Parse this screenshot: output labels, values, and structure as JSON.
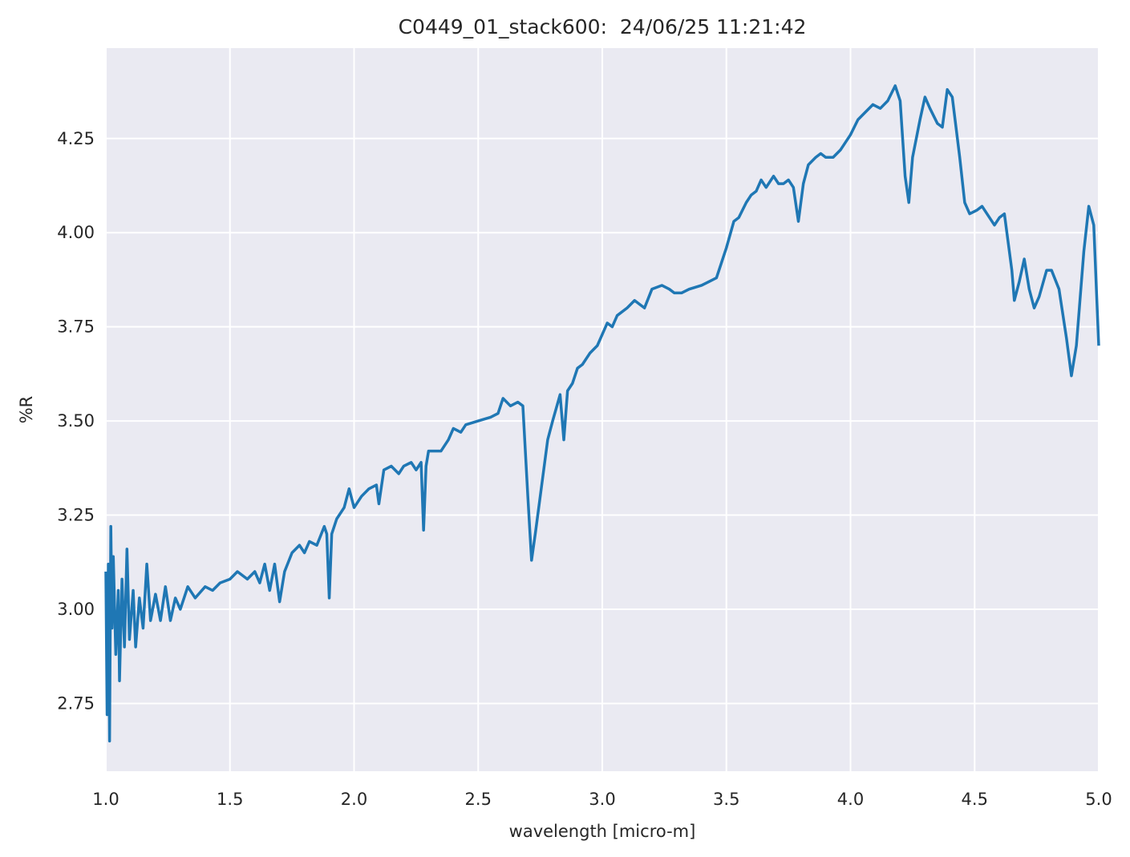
{
  "chart_data": {
    "type": "line",
    "title": "C0449_01_stack600:  24/06/25 11:21:42",
    "xlabel": "wavelength [micro-m]",
    "ylabel": "%R",
    "color": "#1f77b4",
    "grid": true,
    "xlim": [
      1.0,
      5.0
    ],
    "ylim": [
      2.57,
      4.49
    ],
    "xticks": [
      {
        "value": 1.0,
        "label": "1.0"
      },
      1.5,
      {
        "value": 2.0,
        "label": "2.0"
      },
      2.5,
      {
        "value": 3.0,
        "label": "3.0"
      },
      3.5,
      {
        "value": 4.0,
        "label": "4.0"
      },
      4.5,
      {
        "value": 5.0,
        "label": "5.0"
      }
    ],
    "yticks": [
      2.75,
      {
        "value": 3.0,
        "label": "3.00"
      },
      3.25,
      {
        "value": 3.5,
        "label": "3.50"
      },
      3.75,
      {
        "value": 4.0,
        "label": "4.00"
      },
      4.25
    ],
    "x": [
      1.0,
      1.005,
      1.01,
      1.015,
      1.02,
      1.025,
      1.03,
      1.04,
      1.05,
      1.055,
      1.065,
      1.075,
      1.085,
      1.095,
      1.11,
      1.12,
      1.135,
      1.15,
      1.165,
      1.18,
      1.2,
      1.22,
      1.24,
      1.26,
      1.28,
      1.3,
      1.33,
      1.36,
      1.4,
      1.43,
      1.46,
      1.5,
      1.53,
      1.57,
      1.6,
      1.62,
      1.64,
      1.66,
      1.68,
      1.7,
      1.72,
      1.75,
      1.78,
      1.8,
      1.82,
      1.85,
      1.88,
      1.89,
      1.9,
      1.91,
      1.93,
      1.96,
      1.98,
      2.0,
      2.03,
      2.06,
      2.09,
      2.1,
      2.12,
      2.15,
      2.18,
      2.2,
      2.23,
      2.25,
      2.27,
      2.28,
      2.29,
      2.3,
      2.35,
      2.38,
      2.4,
      2.43,
      2.45,
      2.5,
      2.55,
      2.58,
      2.6,
      2.63,
      2.66,
      2.68,
      2.7,
      2.715,
      2.73,
      2.76,
      2.78,
      2.8,
      2.83,
      2.845,
      2.86,
      2.88,
      2.9,
      2.92,
      2.95,
      2.98,
      3.0,
      3.02,
      3.04,
      3.06,
      3.1,
      3.13,
      3.15,
      3.17,
      3.2,
      3.24,
      3.27,
      3.29,
      3.32,
      3.35,
      3.4,
      3.43,
      3.46,
      3.48,
      3.5,
      3.53,
      3.55,
      3.58,
      3.6,
      3.62,
      3.64,
      3.66,
      3.69,
      3.71,
      3.73,
      3.75,
      3.77,
      3.79,
      3.81,
      3.83,
      3.86,
      3.88,
      3.9,
      3.93,
      3.96,
      3.98,
      4.0,
      4.03,
      4.06,
      4.09,
      4.12,
      4.15,
      4.18,
      4.2,
      4.22,
      4.235,
      4.25,
      4.28,
      4.3,
      4.32,
      4.35,
      4.37,
      4.39,
      4.41,
      4.44,
      4.46,
      4.48,
      4.51,
      4.53,
      4.56,
      4.58,
      4.6,
      4.62,
      4.65,
      4.66,
      4.68,
      4.7,
      4.72,
      4.74,
      4.76,
      4.79,
      4.81,
      4.84,
      4.87,
      4.89,
      4.91,
      4.94,
      4.96,
      4.98,
      5.0
    ],
    "values": [
      3.1,
      2.72,
      3.12,
      2.65,
      3.22,
      2.95,
      3.14,
      2.88,
      3.05,
      2.81,
      3.08,
      2.9,
      3.16,
      2.92,
      3.05,
      2.9,
      3.03,
      2.95,
      3.12,
      2.97,
      3.04,
      2.97,
      3.06,
      2.97,
      3.03,
      3.0,
      3.06,
      3.03,
      3.06,
      3.05,
      3.07,
      3.08,
      3.1,
      3.08,
      3.1,
      3.07,
      3.12,
      3.05,
      3.12,
      3.02,
      3.1,
      3.15,
      3.17,
      3.15,
      3.18,
      3.17,
      3.22,
      3.2,
      3.03,
      3.2,
      3.24,
      3.27,
      3.32,
      3.27,
      3.3,
      3.32,
      3.33,
      3.28,
      3.37,
      3.38,
      3.36,
      3.38,
      3.39,
      3.37,
      3.39,
      3.21,
      3.38,
      3.42,
      3.42,
      3.45,
      3.48,
      3.47,
      3.49,
      3.5,
      3.51,
      3.52,
      3.56,
      3.54,
      3.55,
      3.54,
      3.3,
      3.13,
      3.2,
      3.35,
      3.45,
      3.5,
      3.57,
      3.45,
      3.58,
      3.6,
      3.64,
      3.65,
      3.68,
      3.7,
      3.73,
      3.76,
      3.75,
      3.78,
      3.8,
      3.82,
      3.81,
      3.8,
      3.85,
      3.86,
      3.85,
      3.84,
      3.84,
      3.85,
      3.86,
      3.87,
      3.88,
      3.92,
      3.96,
      4.03,
      4.04,
      4.08,
      4.1,
      4.11,
      4.14,
      4.12,
      4.15,
      4.13,
      4.13,
      4.14,
      4.12,
      4.03,
      4.13,
      4.18,
      4.2,
      4.21,
      4.2,
      4.2,
      4.22,
      4.24,
      4.26,
      4.3,
      4.32,
      4.34,
      4.33,
      4.35,
      4.39,
      4.35,
      4.15,
      4.08,
      4.2,
      4.3,
      4.36,
      4.33,
      4.29,
      4.28,
      4.38,
      4.36,
      4.2,
      4.08,
      4.05,
      4.06,
      4.07,
      4.04,
      4.02,
      4.04,
      4.05,
      3.9,
      3.82,
      3.87,
      3.93,
      3.85,
      3.8,
      3.83,
      3.9,
      3.9,
      3.85,
      3.72,
      3.62,
      3.7,
      3.95,
      4.07,
      4.02,
      3.7
    ]
  }
}
